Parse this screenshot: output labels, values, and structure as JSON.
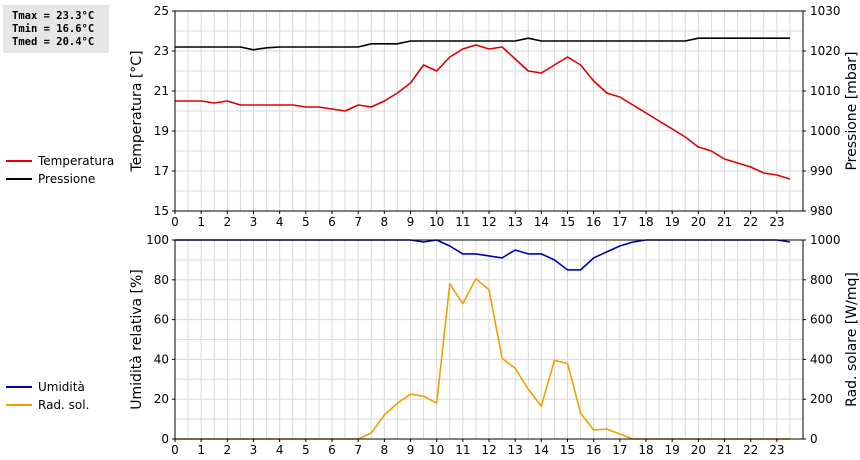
{
  "stats": {
    "tmax": "Tmax = 23.3°C",
    "tmin": "Tmin = 16.6°C",
    "tmed": "Tmed = 20.4°C"
  },
  "colors": {
    "temperature": "#dd0000",
    "pressure": "#000000",
    "humidity": "#0000bb",
    "solar": "#f0a000",
    "grid": "#d9d9d9"
  },
  "chart_data": [
    {
      "type": "line",
      "x_ticks": [
        "0",
        "1",
        "2",
        "3",
        "4",
        "5",
        "6",
        "7",
        "8",
        "9",
        "10",
        "11",
        "12",
        "13",
        "14",
        "15",
        "16",
        "17",
        "18",
        "19",
        "20",
        "21",
        "22",
        "23"
      ],
      "xlim": [
        0,
        24
      ],
      "ylabel": "Temperatura [°C]",
      "ylim": [
        15,
        25
      ],
      "y_ticks": [
        "15",
        "17",
        "19",
        "21",
        "23",
        "25"
      ],
      "y2label": "Pressione [mbar]",
      "y2lim": [
        980,
        1030
      ],
      "y2_ticks": [
        "980",
        "990",
        "1000",
        "1010",
        "1020",
        "1030"
      ],
      "grid": true,
      "legend": "left",
      "series": [
        {
          "name": "Temperatura",
          "axis": "left",
          "x": [
            0,
            0.5,
            1,
            1.5,
            2,
            2.5,
            3,
            3.5,
            4,
            4.5,
            5,
            5.5,
            6,
            6.5,
            7,
            7.5,
            8,
            8.5,
            9,
            9.5,
            10,
            10.5,
            11,
            11.5,
            12,
            12.5,
            13,
            13.5,
            14,
            14.5,
            15,
            15.5,
            16,
            16.5,
            17,
            17.5,
            18,
            18.5,
            19,
            19.5,
            20,
            20.5,
            21,
            21.5,
            22,
            22.5,
            23,
            23.5
          ],
          "values": [
            20.5,
            20.5,
            20.5,
            20.4,
            20.5,
            20.3,
            20.3,
            20.3,
            20.3,
            20.3,
            20.2,
            20.2,
            20.1,
            20.0,
            20.3,
            20.2,
            20.5,
            20.9,
            21.4,
            22.3,
            22.0,
            22.7,
            23.1,
            23.3,
            23.1,
            23.2,
            22.6,
            22.0,
            21.9,
            22.3,
            22.7,
            22.3,
            21.5,
            20.9,
            20.7,
            20.3,
            19.9,
            19.5,
            19.1,
            18.7,
            18.2,
            18.0,
            17.6,
            17.4,
            17.2,
            16.9,
            16.8,
            16.6
          ]
        },
        {
          "name": "Pressione",
          "axis": "right",
          "x": [
            0,
            0.5,
            1,
            1.5,
            2,
            2.5,
            3,
            3.5,
            4,
            4.5,
            5,
            5.5,
            6,
            6.5,
            7,
            7.5,
            8,
            8.5,
            9,
            9.5,
            10,
            10.5,
            11,
            11.5,
            12,
            12.5,
            13,
            13.5,
            14,
            14.5,
            15,
            15.5,
            16,
            16.5,
            17,
            17.5,
            18,
            18.5,
            19,
            19.5,
            20,
            20.5,
            21,
            21.5,
            22,
            22.5,
            23,
            23.5
          ],
          "values": [
            1021,
            1021,
            1021,
            1021,
            1021,
            1021,
            1020.3,
            1020.8,
            1021,
            1021,
            1021,
            1021,
            1021,
            1021,
            1021,
            1021.8,
            1021.8,
            1021.8,
            1022.5,
            1022.5,
            1022.5,
            1022.5,
            1022.5,
            1022.5,
            1022.5,
            1022.5,
            1022.5,
            1023.2,
            1022.5,
            1022.5,
            1022.5,
            1022.5,
            1022.5,
            1022.5,
            1022.5,
            1022.5,
            1022.5,
            1022.5,
            1022.5,
            1022.5,
            1023.2,
            1023.2,
            1023.2,
            1023.2,
            1023.2,
            1023.2,
            1023.2,
            1023.2
          ]
        }
      ]
    },
    {
      "type": "line",
      "x_ticks": [
        "0",
        "1",
        "2",
        "3",
        "4",
        "5",
        "6",
        "7",
        "8",
        "9",
        "10",
        "11",
        "12",
        "13",
        "14",
        "15",
        "16",
        "17",
        "18",
        "19",
        "20",
        "21",
        "22",
        "23"
      ],
      "xlim": [
        0,
        24
      ],
      "ylabel": "Umidità relativa [%]",
      "ylim": [
        0,
        100
      ],
      "y_ticks": [
        "0",
        "20",
        "40",
        "60",
        "80",
        "100"
      ],
      "y2label": "Rad. solare [W/mq]",
      "y2lim": [
        0,
        1000
      ],
      "y2_ticks": [
        "0",
        "200",
        "400",
        "600",
        "800",
        "1000"
      ],
      "grid": true,
      "legend": "left",
      "series": [
        {
          "name": "Umidità",
          "axis": "left",
          "x": [
            0,
            9,
            9.5,
            10,
            10.5,
            11,
            11.5,
            12,
            12.5,
            13,
            13.5,
            14,
            14.5,
            15,
            15.5,
            16,
            16.5,
            17,
            17.5,
            18,
            23,
            23.5
          ],
          "values": [
            100,
            100,
            99,
            100,
            97,
            93,
            93,
            92,
            91,
            95,
            93,
            93,
            90,
            85,
            85,
            91,
            94,
            97,
            99,
            100,
            100,
            99
          ]
        },
        {
          "name": "Rad. sol.",
          "axis": "right",
          "x": [
            0,
            7,
            7.5,
            8,
            8.5,
            9,
            9.5,
            10,
            10.5,
            11,
            11.5,
            12,
            12.5,
            13,
            13.5,
            14,
            14.5,
            15,
            15.5,
            16,
            16.5,
            17,
            17.5,
            23.5
          ],
          "values": [
            0,
            0,
            30,
            120,
            180,
            225,
            215,
            180,
            780,
            680,
            805,
            750,
            405,
            355,
            250,
            165,
            395,
            380,
            130,
            45,
            50,
            25,
            0,
            0
          ]
        }
      ]
    }
  ]
}
